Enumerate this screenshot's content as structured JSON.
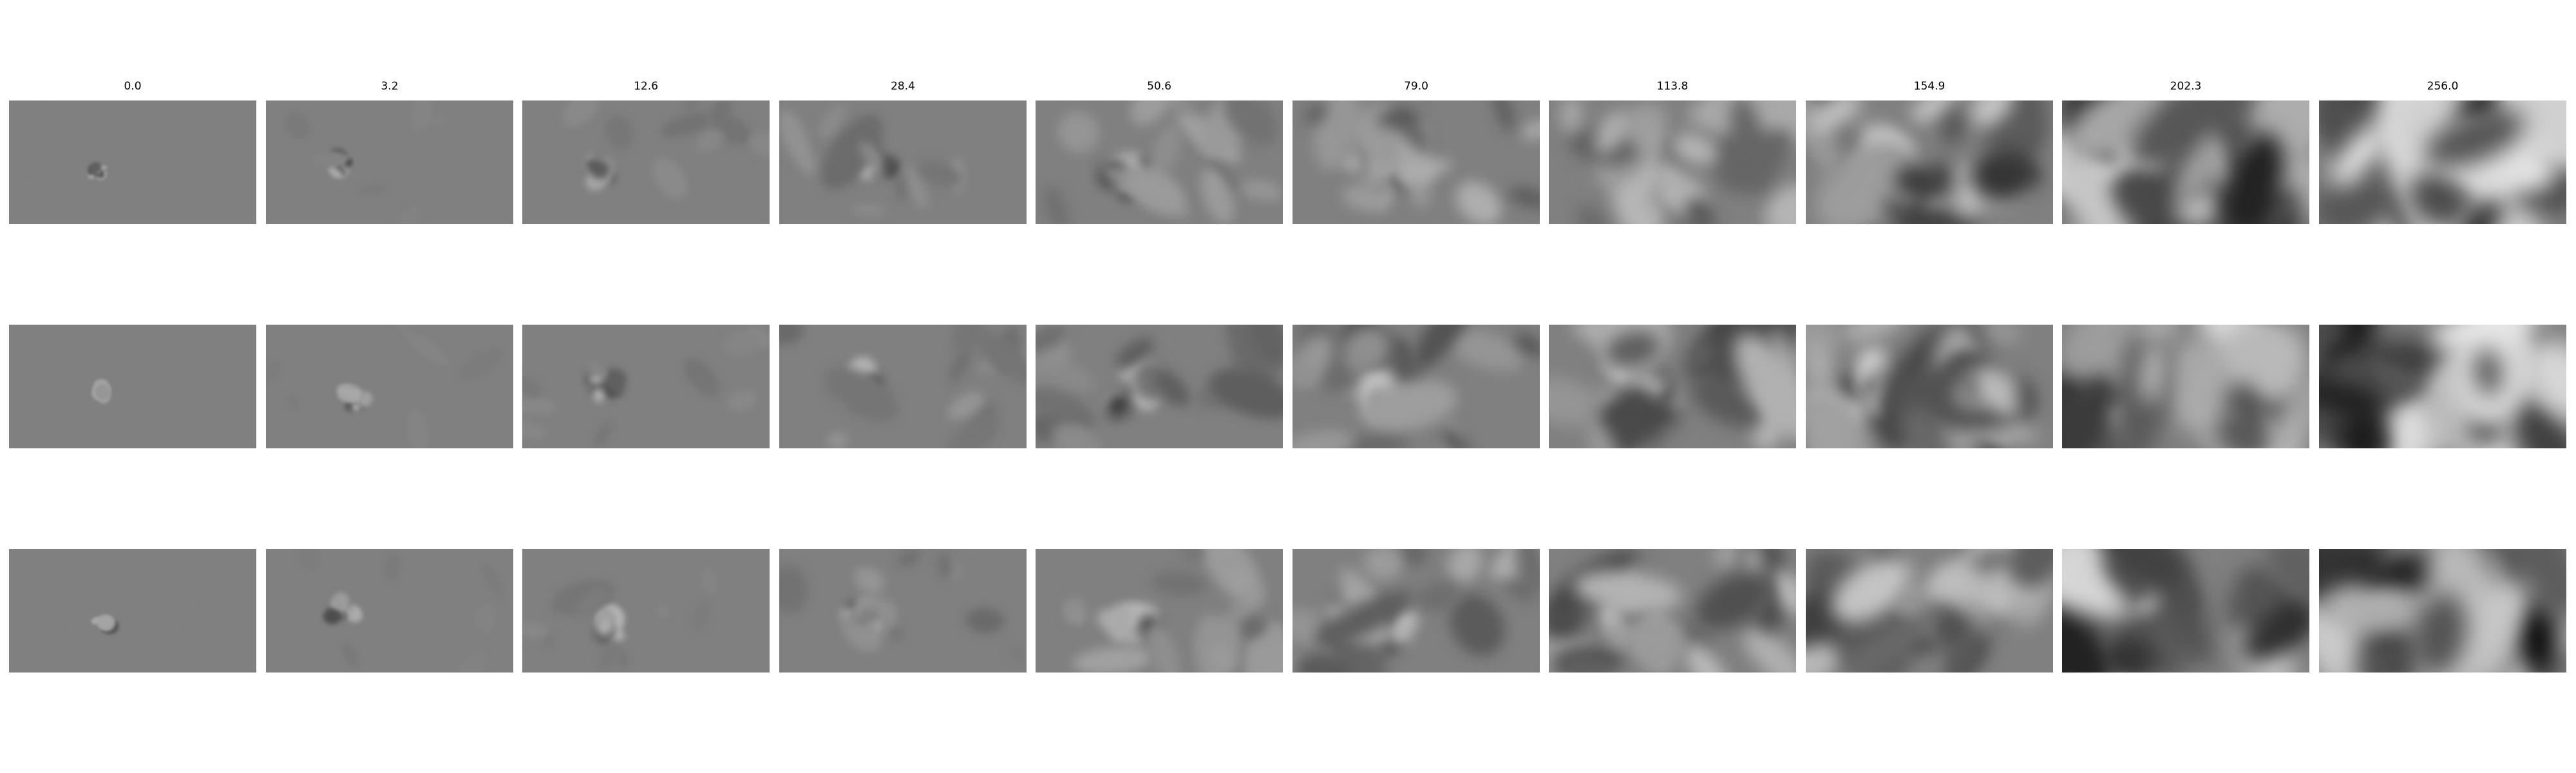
{
  "figure": {
    "columns": [
      {
        "label": "0.0"
      },
      {
        "label": "3.2"
      },
      {
        "label": "12.6"
      },
      {
        "label": "28.4"
      },
      {
        "label": "50.6"
      },
      {
        "label": "79.0"
      },
      {
        "label": "113.8"
      },
      {
        "label": "154.9"
      },
      {
        "label": "202.3"
      },
      {
        "label": "256.0"
      }
    ],
    "rows": 3,
    "colormap": "gray",
    "background_gray": "#808080"
  }
}
